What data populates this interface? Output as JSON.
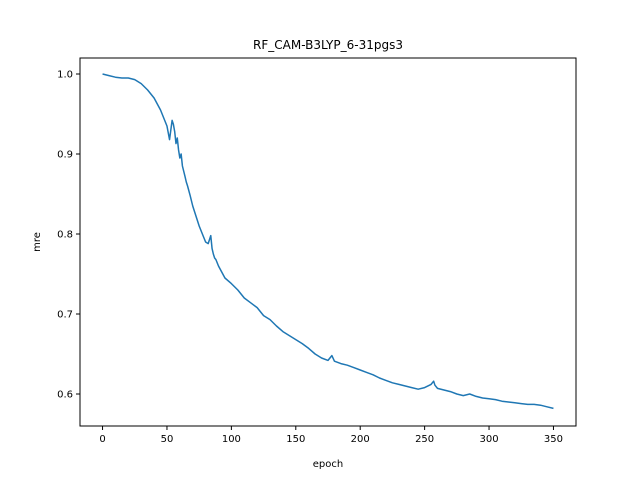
{
  "chart_data": {
    "type": "line",
    "title": "RF_CAM-B3LYP_6-31pgs3",
    "xlabel": "epoch",
    "ylabel": "mre",
    "xlim": [
      -17.5,
      367.5
    ],
    "ylim": [
      0.56,
      1.02
    ],
    "xticks": [
      0,
      50,
      100,
      150,
      200,
      250,
      300,
      350
    ],
    "yticks": [
      0.6,
      0.7,
      0.8,
      0.9,
      1.0
    ],
    "xtick_labels": [
      "0",
      "50",
      "100",
      "150",
      "200",
      "250",
      "300",
      "350"
    ],
    "ytick_labels": [
      "0.6",
      "0.7",
      "0.8",
      "0.9",
      "1.0"
    ],
    "grid": false,
    "series": [
      {
        "color": "#1f77b4",
        "x": [
          0,
          5,
          10,
          15,
          20,
          25,
          30,
          35,
          40,
          45,
          50,
          52,
          54,
          55,
          56,
          57,
          58,
          59,
          60,
          61,
          62,
          64,
          65,
          66,
          68,
          70,
          72,
          75,
          78,
          80,
          82,
          84,
          85,
          86,
          87,
          88,
          90,
          95,
          100,
          105,
          110,
          115,
          120,
          125,
          130,
          135,
          140,
          145,
          150,
          155,
          160,
          165,
          170,
          175,
          178,
          180,
          185,
          190,
          195,
          200,
          205,
          210,
          215,
          220,
          225,
          230,
          235,
          240,
          245,
          250,
          255,
          257,
          258,
          260,
          265,
          270,
          275,
          280,
          285,
          290,
          295,
          300,
          305,
          310,
          315,
          320,
          325,
          330,
          335,
          340,
          345,
          350
        ],
        "y": [
          1.0,
          0.998,
          0.996,
          0.995,
          0.995,
          0.993,
          0.988,
          0.98,
          0.97,
          0.955,
          0.935,
          0.918,
          0.942,
          0.937,
          0.928,
          0.913,
          0.92,
          0.905,
          0.895,
          0.9,
          0.885,
          0.872,
          0.865,
          0.86,
          0.848,
          0.835,
          0.825,
          0.81,
          0.798,
          0.79,
          0.788,
          0.798,
          0.782,
          0.775,
          0.77,
          0.768,
          0.76,
          0.745,
          0.738,
          0.73,
          0.72,
          0.714,
          0.708,
          0.698,
          0.693,
          0.685,
          0.678,
          0.673,
          0.668,
          0.663,
          0.657,
          0.65,
          0.645,
          0.642,
          0.648,
          0.641,
          0.638,
          0.636,
          0.633,
          0.63,
          0.627,
          0.624,
          0.62,
          0.617,
          0.614,
          0.612,
          0.61,
          0.608,
          0.606,
          0.608,
          0.612,
          0.616,
          0.611,
          0.607,
          0.605,
          0.603,
          0.6,
          0.598,
          0.6,
          0.597,
          0.595,
          0.594,
          0.593,
          0.591,
          0.59,
          0.589,
          0.588,
          0.587,
          0.587,
          0.586,
          0.584,
          0.582
        ]
      }
    ]
  }
}
